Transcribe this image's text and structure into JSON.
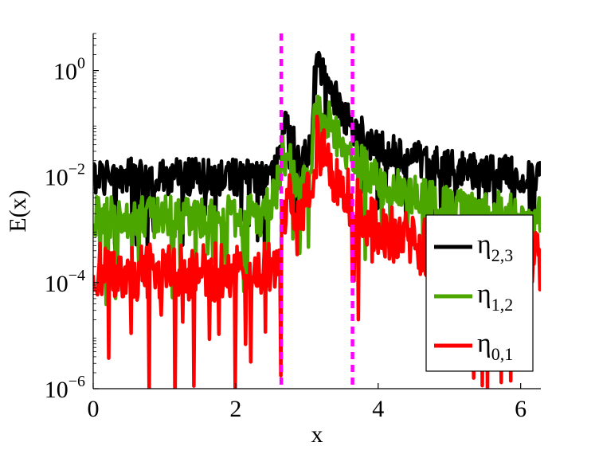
{
  "chart_data": {
    "type": "line",
    "xlabel": "x",
    "ylabel": "E(x)",
    "xlim": [
      0,
      6.2832
    ],
    "ylim_log10": [
      -6,
      0.7
    ],
    "yscale": "log",
    "x_ticks": [
      0,
      2,
      4,
      6
    ],
    "x_tick_labels": [
      "0",
      "2",
      "4",
      "6"
    ],
    "y_ticks_log10": [
      -6,
      -4,
      -2,
      0
    ],
    "y_tick_labels": [
      {
        "base": "10",
        "exp": "−6"
      },
      {
        "base": "10",
        "exp": "−4"
      },
      {
        "base": "10",
        "exp": "−2"
      },
      {
        "base": "10",
        "exp": "0"
      }
    ],
    "grid": false,
    "legend_position": "bottom-right",
    "vertical_lines": {
      "x": [
        2.64,
        3.64
      ],
      "color": "#ff00ff",
      "style": "dashed"
    },
    "series": [
      {
        "name": "η",
        "subscript": "2,3",
        "color": "#000000",
        "profile_log10": [
          [
            0.0,
            -2.0
          ],
          [
            2.4,
            -2.0
          ],
          [
            2.55,
            -1.75
          ],
          [
            2.63,
            -1.45
          ],
          [
            2.66,
            -1.05
          ],
          [
            2.75,
            -1.15
          ],
          [
            2.9,
            -1.75
          ],
          [
            3.05,
            -1.5
          ],
          [
            3.1,
            -0.3
          ],
          [
            3.15,
            0.2
          ],
          [
            3.3,
            -0.25
          ],
          [
            3.5,
            -0.8
          ],
          [
            3.64,
            -1.05
          ],
          [
            4.0,
            -1.45
          ],
          [
            5.0,
            -1.85
          ],
          [
            6.2832,
            -2.0
          ]
        ],
        "noise_log10": 0.35
      },
      {
        "name": "η",
        "subscript": "1,2",
        "color": "#4ca600",
        "profile_log10": [
          [
            0.0,
            -2.75
          ],
          [
            2.4,
            -2.75
          ],
          [
            2.55,
            -2.3
          ],
          [
            2.63,
            -2.0
          ],
          [
            2.66,
            -1.6
          ],
          [
            2.75,
            -1.65
          ],
          [
            2.9,
            -2.3
          ],
          [
            3.05,
            -2.0
          ],
          [
            3.1,
            -0.9
          ],
          [
            3.15,
            -0.5
          ],
          [
            3.3,
            -0.95
          ],
          [
            3.5,
            -1.4
          ],
          [
            3.64,
            -1.6
          ],
          [
            4.0,
            -2.1
          ],
          [
            5.0,
            -2.6
          ],
          [
            6.2832,
            -2.75
          ]
        ],
        "noise_log10": 0.4
      },
      {
        "name": "η",
        "subscript": "0,1",
        "color": "#ff0000",
        "profile_log10": [
          [
            0.0,
            -3.8
          ],
          [
            2.55,
            -3.8
          ],
          [
            2.63,
            -3.5
          ],
          [
            2.66,
            -2.6
          ],
          [
            2.75,
            -2.4
          ],
          [
            2.9,
            -2.6
          ],
          [
            3.05,
            -2.4
          ],
          [
            3.1,
            -1.7
          ],
          [
            3.15,
            -1.35
          ],
          [
            3.3,
            -1.8
          ],
          [
            3.5,
            -2.2
          ],
          [
            3.64,
            -2.5
          ],
          [
            4.0,
            -3.0
          ],
          [
            5.0,
            -3.5
          ],
          [
            6.2832,
            -3.6
          ]
        ],
        "noise_log10": 0.55
      }
    ]
  }
}
